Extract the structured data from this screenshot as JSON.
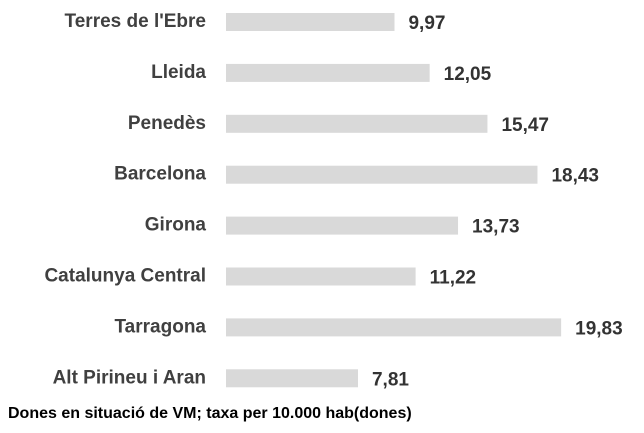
{
  "chart_data": {
    "type": "bar",
    "orientation": "horizontal",
    "title": "Dones en situació de VM; taxa per 10.000 hab(dones)",
    "categories": [
      "Terres de l'Ebre",
      "Lleida",
      "Penedès",
      "Barcelona",
      "Girona",
      "Catalunya Central",
      "Tarragona",
      "Alt Pirineu i Aran"
    ],
    "values": [
      9.97,
      12.05,
      15.47,
      18.43,
      13.73,
      11.22,
      19.83,
      7.81
    ],
    "value_labels": [
      "9,97",
      "12,05",
      "15,47",
      "18,43",
      "13,73",
      "11,22",
      "19,83",
      "7,81"
    ],
    "color": "#d9d9d9",
    "xlim": [
      0,
      20
    ]
  }
}
